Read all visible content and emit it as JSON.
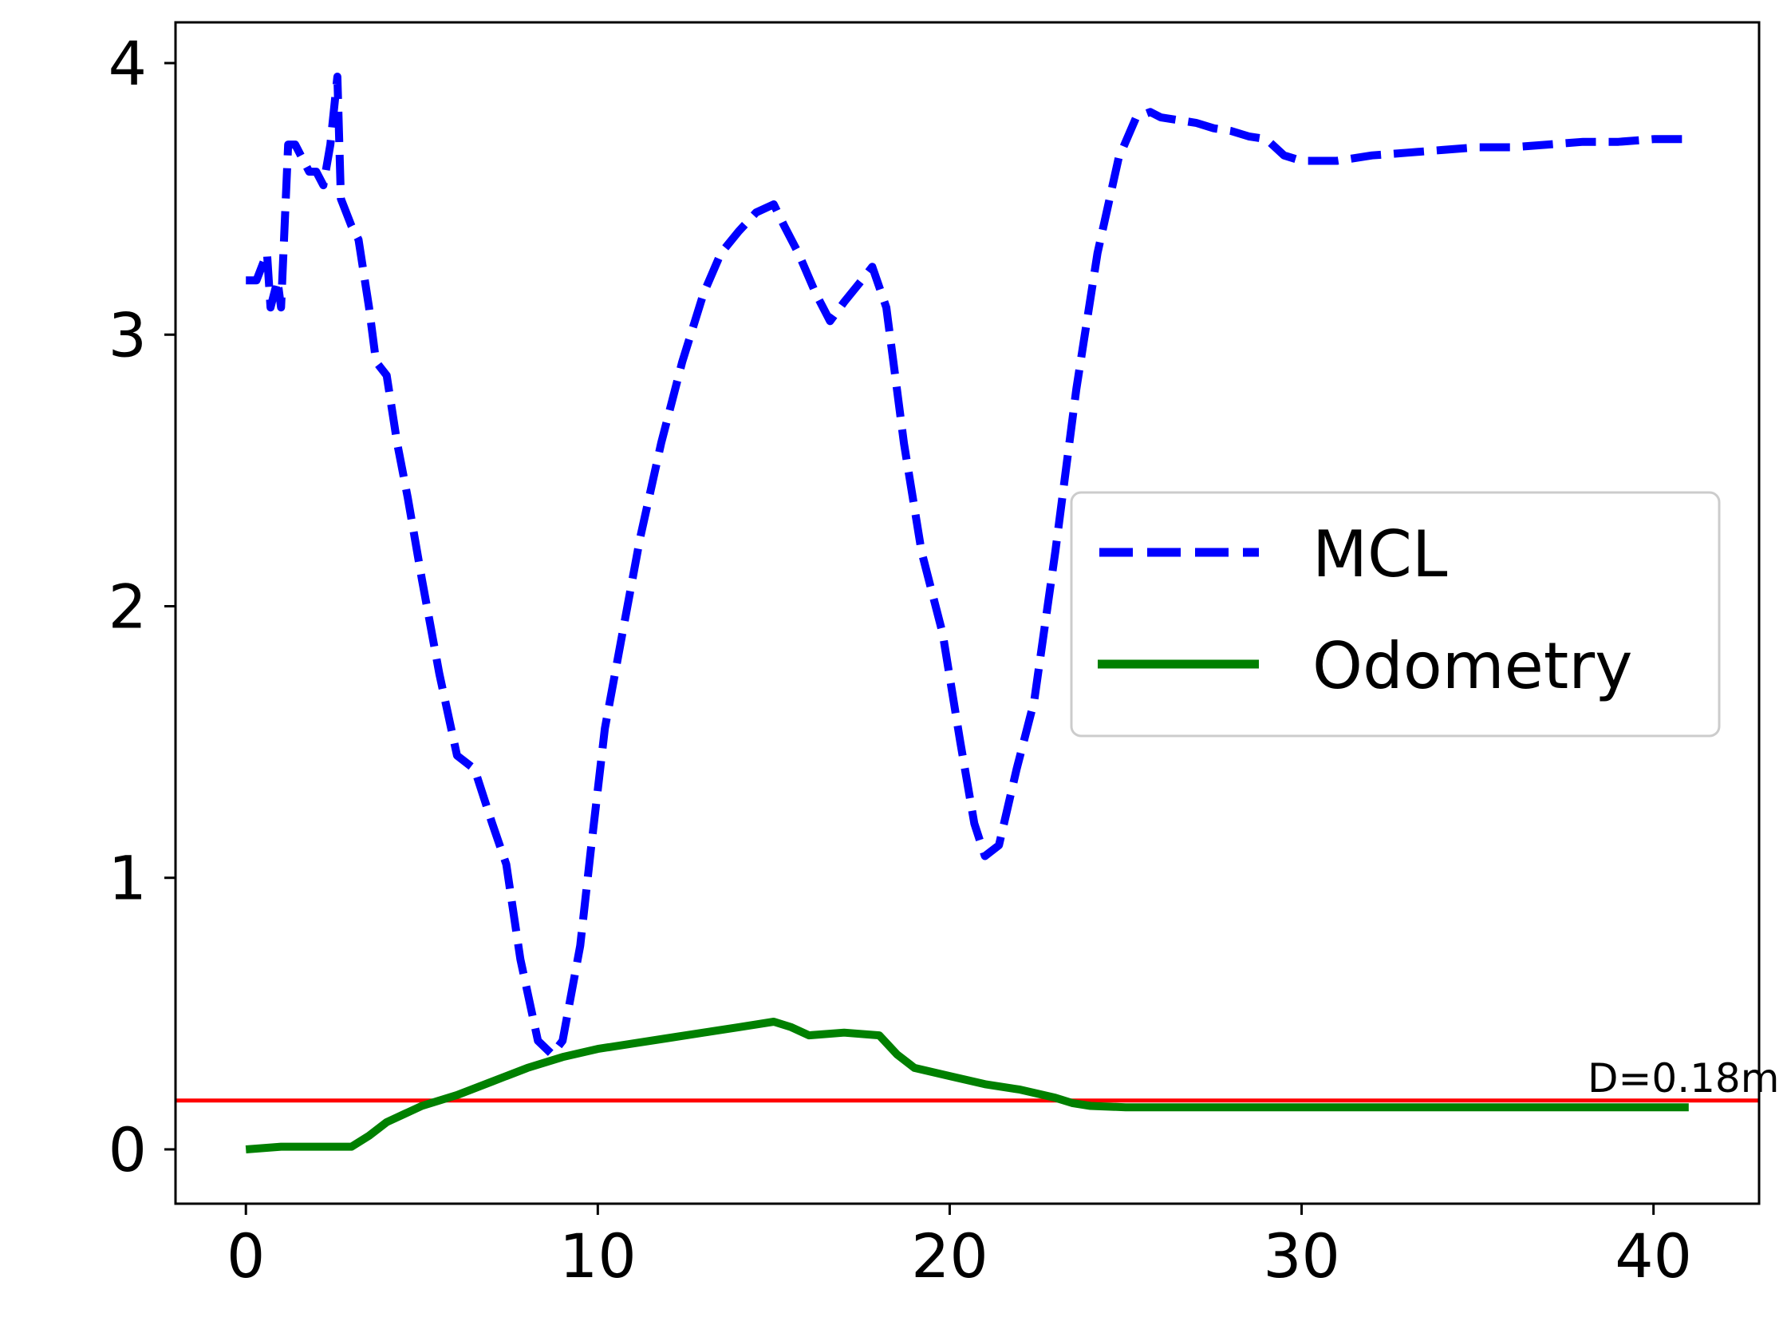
{
  "chart_data": {
    "type": "line",
    "title": "",
    "xlabel": "",
    "ylabel": "",
    "xlim": [
      -2.0,
      43.0
    ],
    "ylim": [
      -0.2,
      4.15
    ],
    "x_ticks": [
      0,
      10,
      20,
      30,
      40
    ],
    "y_ticks": [
      0,
      1,
      2,
      3,
      4
    ],
    "x_tick_labels": [
      "0",
      "10",
      "20",
      "30",
      "40"
    ],
    "y_tick_labels": [
      "0",
      "1",
      "2",
      "3",
      "4"
    ],
    "grid": false,
    "legend_position": "center-right",
    "series": [
      {
        "name": "MCL",
        "style": "dashed",
        "color": "#0000ff",
        "x": [
          0,
          0.3,
          0.6,
          0.7,
          0.9,
          1.0,
          1.2,
          1.4,
          1.8,
          2.0,
          2.2,
          2.4,
          2.6,
          2.7,
          3.0,
          3.2,
          3.5,
          3.7,
          4.0,
          4.3,
          4.6,
          5.0,
          5.5,
          6.0,
          6.5,
          7.0,
          7.4,
          7.8,
          8.3,
          8.7,
          9.0,
          9.5,
          9.8,
          10.2,
          10.7,
          11.2,
          11.8,
          12.4,
          13.0,
          13.5,
          14.0,
          14.5,
          15.0,
          15.3,
          15.7,
          16.2,
          16.6,
          17.0,
          17.5,
          17.8,
          18.2,
          18.7,
          19.2,
          19.8,
          20.3,
          20.7,
          21.0,
          21.4,
          21.9,
          22.4,
          23.0,
          23.6,
          24.2,
          24.8,
          25.3,
          25.7,
          26.0,
          26.5,
          27.0,
          27.5,
          28.0,
          28.5,
          29.0,
          29.5,
          30.0,
          31.0,
          32.0,
          33.0,
          34.0,
          35.0,
          36.0,
          37.0,
          38.0,
          39.0,
          40.0,
          41.0
        ],
        "y": [
          3.2,
          3.2,
          3.3,
          3.1,
          3.2,
          3.1,
          3.7,
          3.7,
          3.6,
          3.6,
          3.55,
          3.7,
          3.95,
          3.5,
          3.4,
          3.35,
          3.1,
          2.9,
          2.85,
          2.6,
          2.4,
          2.1,
          1.75,
          1.45,
          1.4,
          1.2,
          1.05,
          0.7,
          0.4,
          0.35,
          0.4,
          0.75,
          1.1,
          1.55,
          1.9,
          2.25,
          2.6,
          2.9,
          3.15,
          3.3,
          3.38,
          3.45,
          3.48,
          3.4,
          3.3,
          3.15,
          3.05,
          3.12,
          3.2,
          3.25,
          3.1,
          2.6,
          2.2,
          1.9,
          1.5,
          1.2,
          1.08,
          1.12,
          1.4,
          1.65,
          2.2,
          2.8,
          3.3,
          3.65,
          3.8,
          3.82,
          3.8,
          3.79,
          3.78,
          3.76,
          3.75,
          3.73,
          3.72,
          3.66,
          3.64,
          3.64,
          3.66,
          3.67,
          3.68,
          3.69,
          3.69,
          3.7,
          3.71,
          3.71,
          3.72,
          3.72
        ]
      },
      {
        "name": "Odometry",
        "style": "solid",
        "color": "#008000",
        "x": [
          0,
          1,
          2,
          3,
          3.5,
          4,
          4.5,
          5,
          6,
          7,
          8,
          9,
          10,
          11,
          12,
          13,
          14,
          15,
          15.5,
          16,
          17,
          18,
          18.5,
          19,
          20,
          21,
          22,
          23,
          23.5,
          24,
          25,
          26,
          28,
          30,
          35,
          41
        ],
        "y": [
          0.0,
          0.01,
          0.01,
          0.01,
          0.05,
          0.1,
          0.13,
          0.16,
          0.2,
          0.25,
          0.3,
          0.34,
          0.37,
          0.39,
          0.41,
          0.43,
          0.45,
          0.47,
          0.45,
          0.42,
          0.43,
          0.42,
          0.35,
          0.3,
          0.27,
          0.24,
          0.22,
          0.19,
          0.17,
          0.16,
          0.155,
          0.155,
          0.155,
          0.155,
          0.155,
          0.155
        ]
      }
    ],
    "reference_line": {
      "y": 0.18,
      "color": "#ff0000",
      "label": "D=0.18m"
    }
  }
}
